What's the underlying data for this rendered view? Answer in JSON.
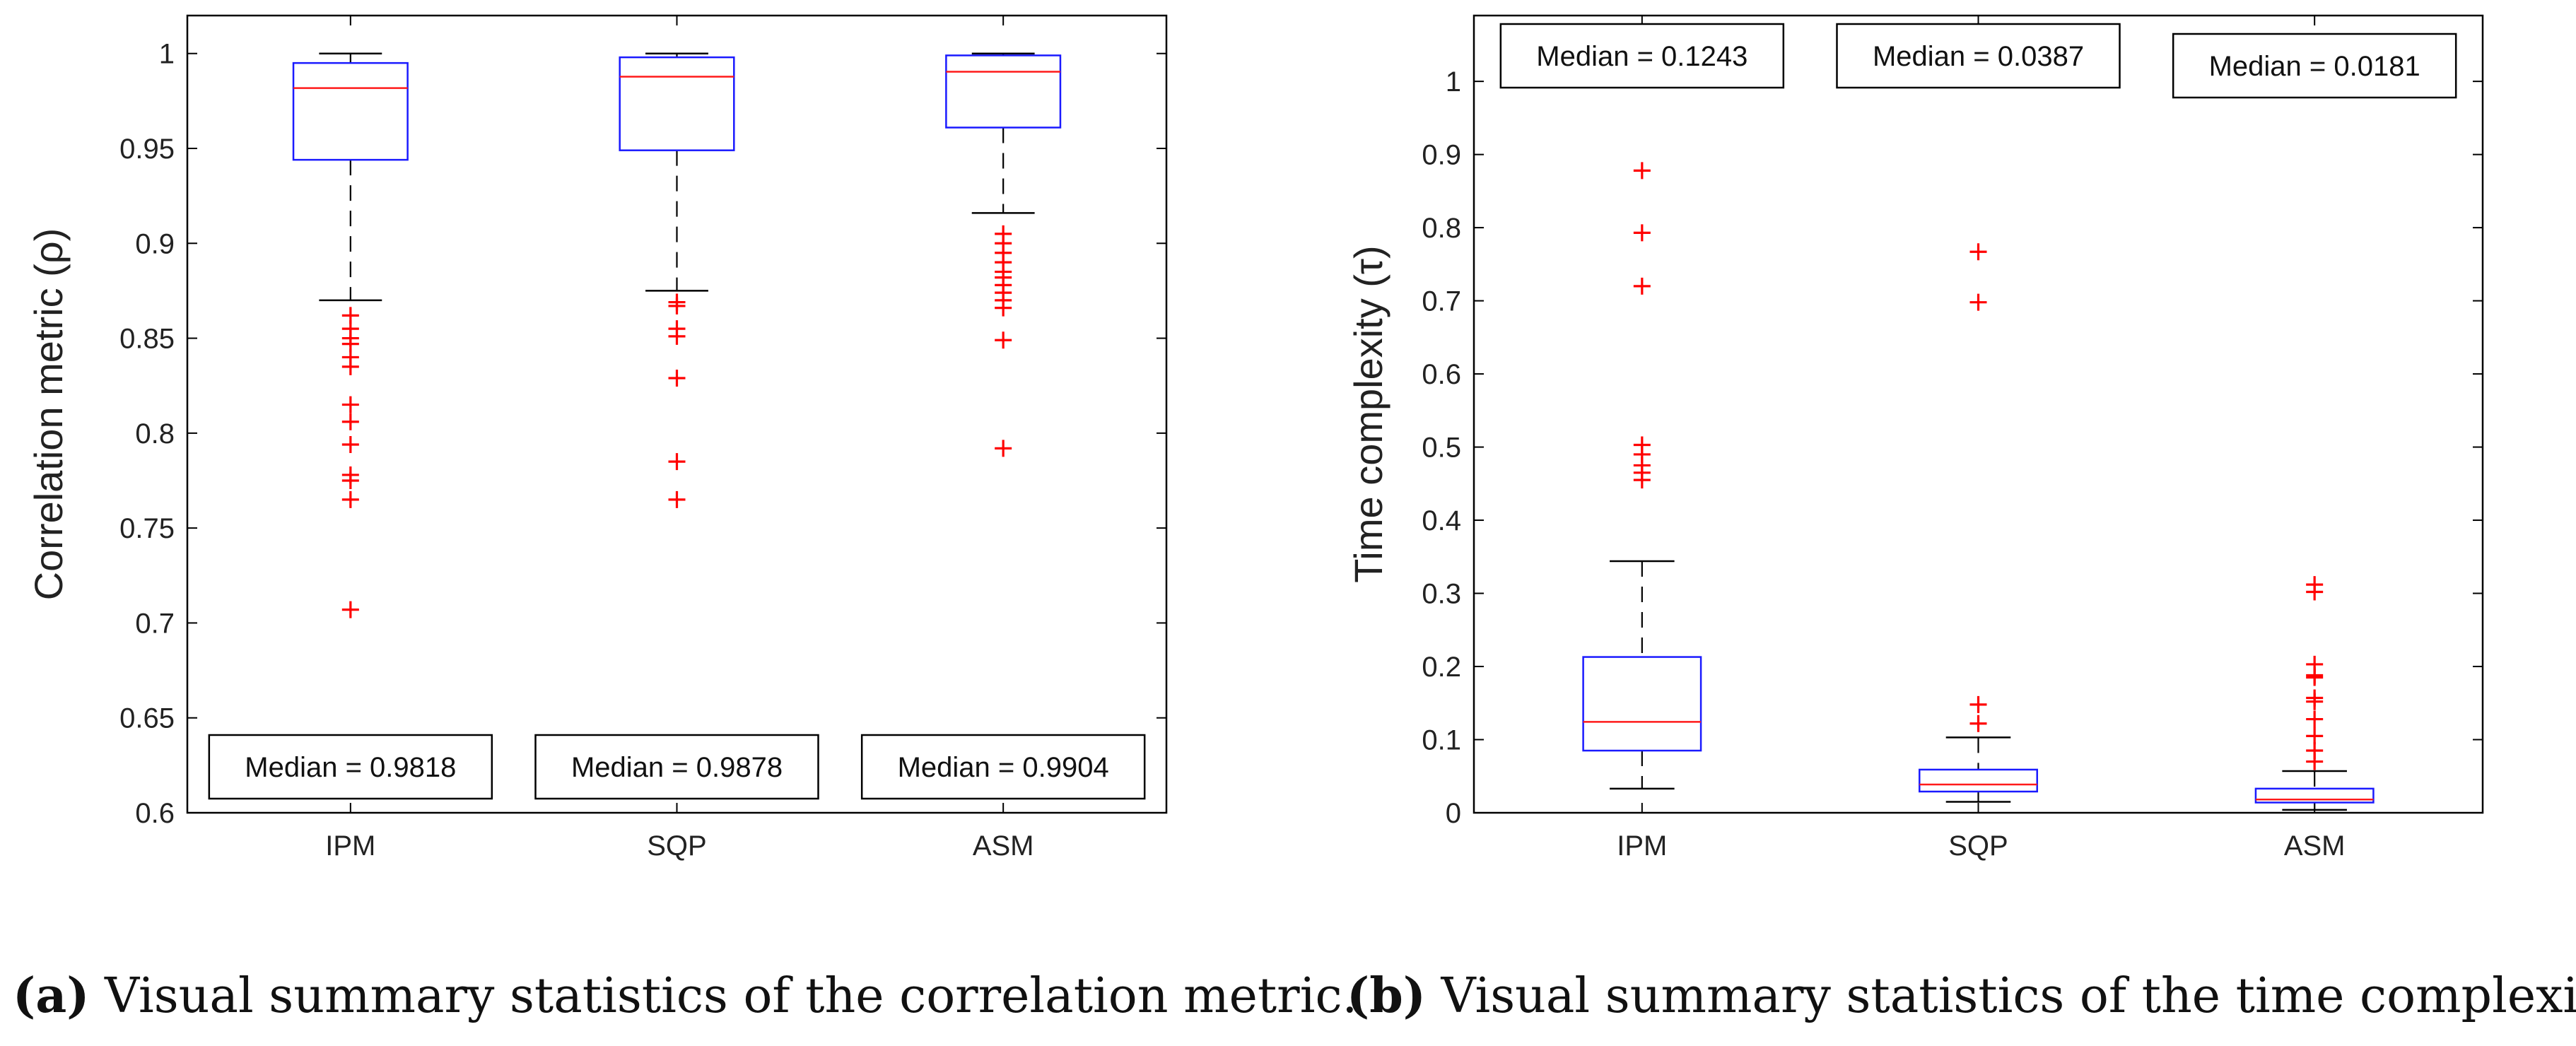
{
  "chart_data": [
    {
      "type": "box",
      "panel": "a",
      "ylabel": "Correlation metric (ρ)",
      "ylim": [
        0.6,
        1.02
      ],
      "yticks": [
        0.6,
        0.65,
        0.7,
        0.75,
        0.8,
        0.85,
        0.9,
        0.95,
        1
      ],
      "ytick_labels": [
        "0.6",
        "0.65",
        "0.7",
        "0.75",
        "0.8",
        "0.85",
        "0.9",
        "0.95",
        "1"
      ],
      "categories": [
        "IPM",
        "SQP",
        "ASM"
      ],
      "boxes": [
        {
          "name": "IPM",
          "whisker_low": 0.87,
          "q1": 0.944,
          "median": 0.9818,
          "q3": 0.995,
          "whisker_high": 1.0,
          "outliers": [
            0.862,
            0.855,
            0.85,
            0.847,
            0.84,
            0.835,
            0.815,
            0.806,
            0.794,
            0.778,
            0.775,
            0.765,
            0.707
          ],
          "annotation": "Median = 0.9818"
        },
        {
          "name": "SQP",
          "whisker_low": 0.875,
          "q1": 0.949,
          "median": 0.9878,
          "q3": 0.998,
          "whisker_high": 1.0,
          "outliers": [
            0.869,
            0.867,
            0.855,
            0.851,
            0.829,
            0.785,
            0.765
          ],
          "annotation": "Median = 0.9878"
        },
        {
          "name": "ASM",
          "whisker_low": 0.916,
          "q1": 0.961,
          "median": 0.9904,
          "q3": 0.999,
          "whisker_high": 1.0,
          "outliers": [
            0.905,
            0.9,
            0.895,
            0.89,
            0.885,
            0.882,
            0.878,
            0.874,
            0.87,
            0.866,
            0.849,
            0.792
          ],
          "annotation": "Median = 0.9904"
        }
      ],
      "annotation_position": "bottom",
      "caption_label": "a",
      "caption_text": " Visual summary statistics of the correlation metric."
    },
    {
      "type": "box",
      "panel": "b",
      "ylabel": "Time complexity (τ)",
      "ylim": [
        0,
        1.09
      ],
      "yticks": [
        0,
        0.1,
        0.2,
        0.3,
        0.4,
        0.5,
        0.6,
        0.7,
        0.8,
        0.9,
        1
      ],
      "ytick_labels": [
        "0",
        "0.1",
        "0.2",
        "0.3",
        "0.4",
        "0.5",
        "0.6",
        "0.7",
        "0.8",
        "0.9",
        "1"
      ],
      "categories": [
        "IPM",
        "SQP",
        "ASM"
      ],
      "boxes": [
        {
          "name": "IPM",
          "whisker_low": 0.033,
          "q1": 0.085,
          "median": 0.1243,
          "q3": 0.213,
          "whisker_high": 0.344,
          "outliers": [
            0.878,
            0.793,
            0.72,
            0.503,
            0.49,
            0.475,
            0.465,
            0.455
          ],
          "annotation": "Median = 0.1243"
        },
        {
          "name": "SQP",
          "whisker_low": 0.015,
          "q1": 0.029,
          "median": 0.0387,
          "q3": 0.059,
          "whisker_high": 0.103,
          "outliers": [
            0.767,
            0.698,
            0.148,
            0.122
          ],
          "annotation": "Median = 0.0387"
        },
        {
          "name": "ASM",
          "whisker_low": 0.004,
          "q1": 0.014,
          "median": 0.0181,
          "q3": 0.033,
          "whisker_high": 0.057,
          "outliers": [
            0.312,
            0.302,
            0.203,
            0.188,
            0.185,
            0.157,
            0.152,
            0.128,
            0.105,
            0.085,
            0.07
          ],
          "annotation": "Median = 0.0181"
        }
      ],
      "annotation_position": "top",
      "caption_label": "b",
      "caption_text": " Visual summary statistics of the time complexity."
    }
  ],
  "colors": {
    "box": "#1a1aff",
    "median": "#ff1a1a",
    "outlier": "#ff0000",
    "whisker": "#000000",
    "axis": "#000000"
  }
}
